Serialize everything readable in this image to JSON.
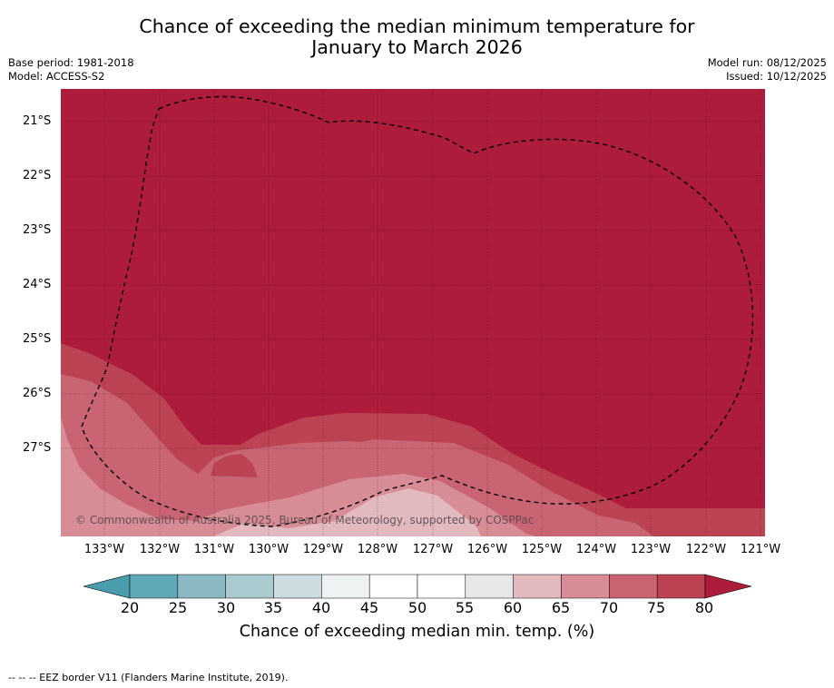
{
  "title_line1": "Chance of exceeding the median minimum temperature for",
  "title_line2": "January to March 2026",
  "base_period": "Base period: 1981-2018",
  "model": "Model: ACCESS-S2",
  "model_run": "Model run: 08/12/2025",
  "issued": "Issued: 10/12/2025",
  "lat_labels": [
    "21°S",
    "22°S",
    "23°S",
    "24°S",
    "25°S",
    "26°S",
    "27°S"
  ],
  "lon_labels": [
    "133°W",
    "132°W",
    "131°W",
    "130°W",
    "129°W",
    "128°W",
    "127°W",
    "126°W",
    "125°W",
    "124°W",
    "123°W",
    "122°W",
    "121°W"
  ],
  "copyright": "© Commonwealth of Australia 2025, Bureau of Meteorology, supported by COSPPac",
  "colorbar": {
    "ticks": [
      "20",
      "25",
      "30",
      "35",
      "40",
      "45",
      "50",
      "55",
      "60",
      "65",
      "70",
      "75",
      "80"
    ],
    "colors": [
      "#5fa8b7",
      "#8ab9c4",
      "#aacad0",
      "#cddcdf",
      "#eef2f3",
      "#ffffff",
      "#ffffff",
      "#e7e7e7",
      "#e2b9bf",
      "#d88d96",
      "#c96572",
      "#bb4353"
    ],
    "under_color": "#4a9dad",
    "over_color": "#ad1c3a",
    "label": "Chance of exceeding median min. temp. (%)"
  },
  "footer": "--  --  -- EEZ border V11 (Flanders Marine Institute, 2019).",
  "chart_data": {
    "type": "heatmap",
    "variable": "Chance of exceeding median min. temp. (%)",
    "lat_range": [
      "20.4°S",
      "28.6°S"
    ],
    "lon_range": [
      "133.8°W",
      "120.9°W"
    ],
    "dominant_category": ">80",
    "regions": [
      {
        "area": "north and centre",
        "category": ">80"
      },
      {
        "area": "south-west band",
        "category": "75-80"
      },
      {
        "area": "south band",
        "category": "70-75"
      },
      {
        "area": "south-west corner",
        "category": "65-70"
      }
    ]
  }
}
